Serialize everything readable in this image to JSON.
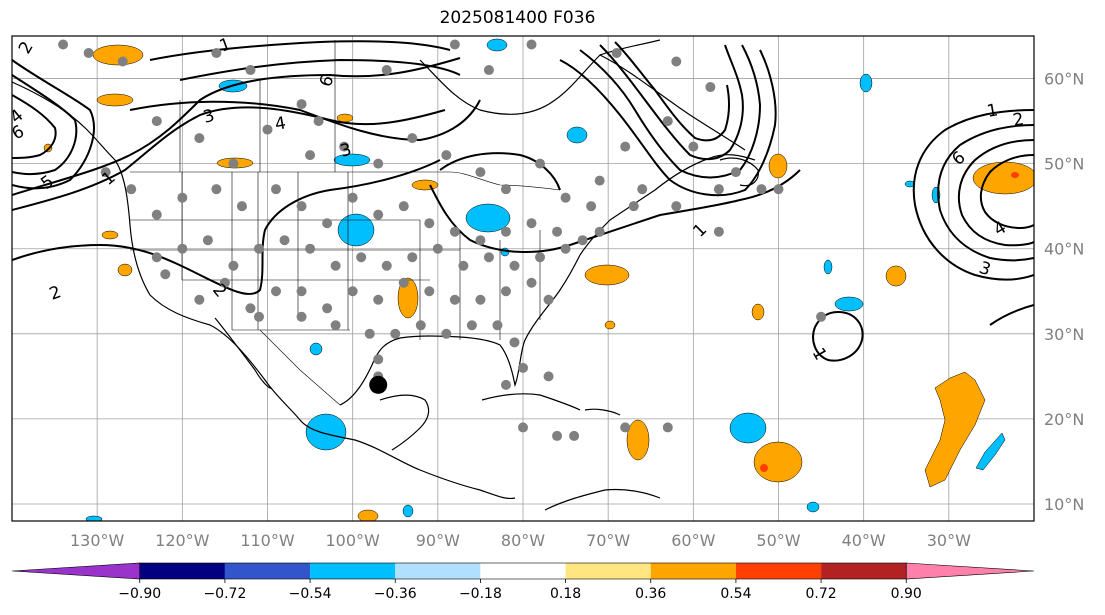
{
  "title": "2025081400 F036",
  "projection": "lat-lon",
  "lon_range": [
    -140,
    -20
  ],
  "lat_range": [
    8,
    65
  ],
  "lon_ticks": [
    {
      "lon": -130,
      "label": "130°W"
    },
    {
      "lon": -120,
      "label": "120°W"
    },
    {
      "lon": -110,
      "label": "110°W"
    },
    {
      "lon": -100,
      "label": "100°W"
    },
    {
      "lon": -90,
      "label": "90°W"
    },
    {
      "lon": -80,
      "label": "80°W"
    },
    {
      "lon": -70,
      "label": "70°W"
    },
    {
      "lon": -60,
      "label": "60°W"
    },
    {
      "lon": -50,
      "label": "50°W"
    },
    {
      "lon": -40,
      "label": "40°W"
    },
    {
      "lon": -30,
      "label": "30°W"
    }
  ],
  "lat_ticks": [
    {
      "lat": 60,
      "label": "60°N"
    },
    {
      "lat": 50,
      "label": "50°N"
    },
    {
      "lat": 40,
      "label": "40°N"
    },
    {
      "lat": 30,
      "label": "30°N"
    },
    {
      "lat": 20,
      "label": "20°N"
    },
    {
      "lat": 10,
      "label": "10°N"
    }
  ],
  "colorbar": {
    "colors": [
      "#9933cc",
      "#000080",
      "#3355cc",
      "#00bfff",
      "#b0e0ff",
      "#ffffff",
      "#ffe680",
      "#ffa500",
      "#ff4000",
      "#b22222",
      "#ff80aa"
    ],
    "tick_labels": [
      "−0.90",
      "−0.72",
      "−0.54",
      "−0.36",
      "−0.18",
      "0.18",
      "0.36",
      "0.54",
      "0.72",
      "0.90"
    ]
  },
  "contour_labels": [
    "1",
    "2",
    "3",
    "4",
    "6",
    "1",
    "2",
    "3",
    "4",
    "5",
    "6",
    "1",
    "2",
    "3",
    "4",
    "6",
    "1",
    "2",
    "1"
  ],
  "stations": [
    [
      -134,
      64
    ],
    [
      -131,
      63
    ],
    [
      -127,
      62
    ],
    [
      -116,
      63
    ],
    [
      -112,
      61
    ],
    [
      -106,
      57
    ],
    [
      -104,
      55
    ],
    [
      -96,
      61
    ],
    [
      -88,
      64
    ],
    [
      -84,
      61
    ],
    [
      -79,
      64
    ],
    [
      -69,
      63
    ],
    [
      -62,
      62
    ],
    [
      -58,
      59
    ],
    [
      -63,
      55
    ],
    [
      -68,
      52
    ],
    [
      -71,
      48
    ],
    [
      -66,
      47
    ],
    [
      -60,
      52
    ],
    [
      -55,
      49
    ],
    [
      -52,
      47
    ],
    [
      -123,
      55
    ],
    [
      -118,
      53
    ],
    [
      -114,
      50
    ],
    [
      -110,
      54
    ],
    [
      -105,
      51
    ],
    [
      -101,
      52
    ],
    [
      -97,
      50
    ],
    [
      -93,
      53
    ],
    [
      -89,
      51
    ],
    [
      -85,
      49
    ],
    [
      -82,
      47
    ],
    [
      -78,
      50
    ],
    [
      -75,
      46
    ],
    [
      -72,
      45
    ],
    [
      -129,
      49
    ],
    [
      -126,
      47
    ],
    [
      -123,
      44
    ],
    [
      -120,
      46
    ],
    [
      -116,
      47
    ],
    [
      -113,
      45
    ],
    [
      -109,
      47
    ],
    [
      -106,
      45
    ],
    [
      -103,
      43
    ],
    [
      -100,
      46
    ],
    [
      -97,
      44
    ],
    [
      -94,
      45
    ],
    [
      -91,
      43
    ],
    [
      -88,
      42
    ],
    [
      -85,
      41
    ],
    [
      -82,
      42
    ],
    [
      -79,
      43
    ],
    [
      -76,
      42
    ],
    [
      -73,
      41
    ],
    [
      -71,
      42
    ],
    [
      -67,
      45
    ],
    [
      -123,
      39
    ],
    [
      -120,
      40
    ],
    [
      -117,
      41
    ],
    [
      -114,
      38
    ],
    [
      -111,
      40
    ],
    [
      -108,
      41
    ],
    [
      -105,
      40
    ],
    [
      -102,
      38
    ],
    [
      -99,
      39
    ],
    [
      -96,
      38
    ],
    [
      -93,
      39
    ],
    [
      -90,
      40
    ],
    [
      -87,
      38
    ],
    [
      -84,
      39
    ],
    [
      -81,
      38
    ],
    [
      -78,
      39
    ],
    [
      -75,
      40
    ],
    [
      -122,
      37
    ],
    [
      -118,
      34
    ],
    [
      -115,
      36
    ],
    [
      -112,
      33
    ],
    [
      -109,
      35
    ],
    [
      -106,
      35
    ],
    [
      -103,
      33
    ],
    [
      -100,
      35
    ],
    [
      -97,
      34
    ],
    [
      -94,
      36
    ],
    [
      -91,
      35
    ],
    [
      -88,
      34
    ],
    [
      -85,
      34
    ],
    [
      -82,
      35
    ],
    [
      -79,
      36
    ],
    [
      -77,
      34
    ],
    [
      -111,
      32
    ],
    [
      -106,
      32
    ],
    [
      -102,
      31
    ],
    [
      -98,
      30
    ],
    [
      -95,
      30
    ],
    [
      -92,
      31
    ],
    [
      -89,
      30
    ],
    [
      -86,
      31
    ],
    [
      -83,
      31
    ],
    [
      -81,
      29
    ],
    [
      -97,
      27
    ],
    [
      -97,
      25
    ],
    [
      -80,
      26
    ],
    [
      -82,
      24
    ],
    [
      -77,
      25
    ],
    [
      -80,
      19
    ],
    [
      -76,
      18
    ],
    [
      -74,
      18
    ],
    [
      -68,
      19
    ],
    [
      -63,
      19
    ],
    [
      -57,
      47
    ],
    [
      -50,
      47
    ],
    [
      -62,
      45
    ],
    [
      -57,
      42
    ],
    [
      -45,
      32
    ]
  ],
  "marked_point": [
    -97,
    24
  ]
}
